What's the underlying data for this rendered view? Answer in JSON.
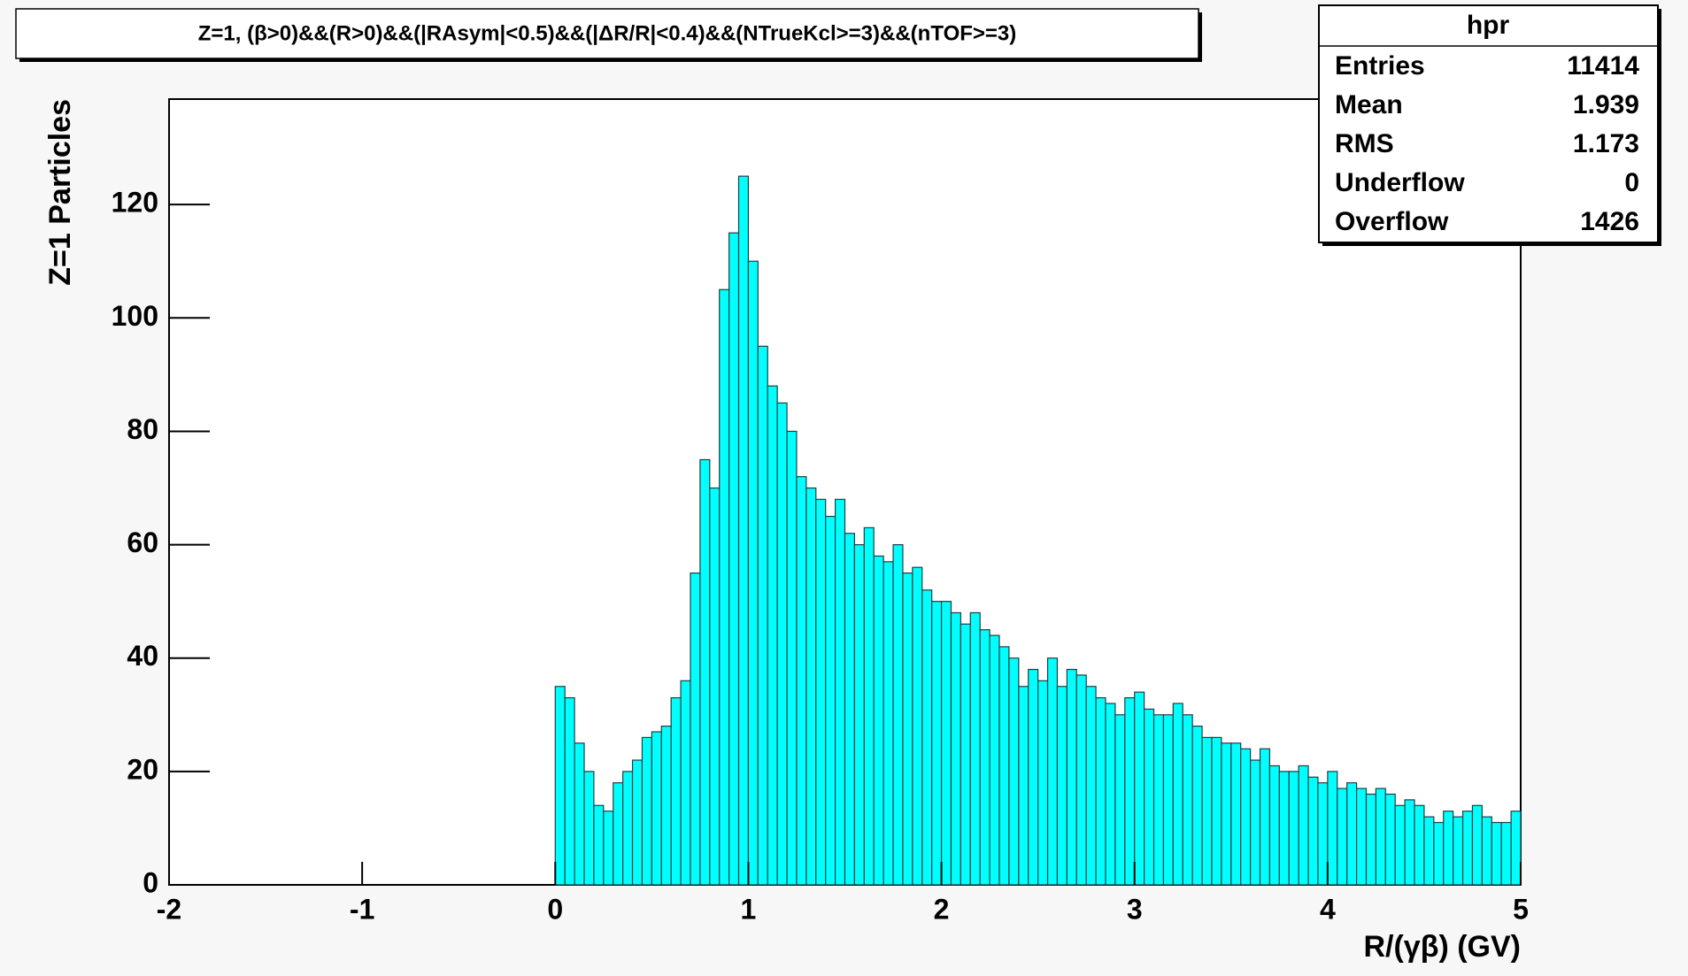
{
  "chart_data": {
    "type": "histogram",
    "title": "Z=1, (β>0)&&(R>0)&&(|RAsym|<0.5)&&(|ΔR/R|<0.4)&&(NTrueKcl>=3)&&(nTOF>=3)",
    "x_label": "R/(γβ) (GV)",
    "y_label": "Z=1 Particles",
    "color": "#00ffff",
    "edge_color": "#1f3f3f",
    "bins": [
      0,
      0.05,
      0.1,
      0.15,
      0.2,
      0.25,
      0.3,
      0.35,
      0.4,
      0.45,
      0.5,
      0.55,
      0.6,
      0.65,
      0.7,
      0.75,
      0.8,
      0.85,
      0.9,
      0.95,
      1,
      1.05,
      1.1,
      1.15,
      1.2,
      1.25,
      1.3,
      1.35,
      1.4,
      1.45,
      1.5,
      1.55,
      1.6,
      1.65,
      1.7,
      1.75,
      1.8,
      1.85,
      1.9,
      1.95,
      2,
      2.05,
      2.1,
      2.15,
      2.2,
      2.25,
      2.3,
      2.35,
      2.4,
      2.45,
      2.5,
      2.55,
      2.6,
      2.65,
      2.7,
      2.75,
      2.8,
      2.85,
      2.9,
      2.95,
      3,
      3.05,
      3.1,
      3.15,
      3.2,
      3.25,
      3.3,
      3.35,
      3.4,
      3.45,
      3.5,
      3.55,
      3.6,
      3.65,
      3.7,
      3.75,
      3.8,
      3.85,
      3.9,
      3.95,
      4,
      4.05,
      4.1,
      4.15,
      4.2,
      4.25,
      4.3,
      4.35,
      4.4,
      4.45,
      4.5,
      4.55,
      4.6,
      4.65,
      4.7,
      4.75,
      4.8,
      4.85,
      4.9,
      4.95,
      5
    ],
    "values": [
      35,
      33,
      25,
      20,
      14,
      13,
      18,
      20,
      22,
      26,
      27,
      28,
      33,
      36,
      55,
      75,
      70,
      105,
      115,
      125,
      110,
      95,
      88,
      85,
      80,
      72,
      70,
      68,
      65,
      68,
      62,
      60,
      63,
      58,
      57,
      60,
      55,
      56,
      52,
      50,
      50,
      48,
      46,
      48,
      45,
      44,
      42,
      40,
      35,
      38,
      36,
      40,
      35,
      38,
      37,
      35,
      33,
      32,
      30,
      33,
      34,
      31,
      30,
      30,
      32,
      30,
      28,
      26,
      26,
      25,
      25,
      24,
      22,
      24,
      21,
      20,
      20,
      21,
      19,
      18,
      20,
      17,
      18,
      17,
      16,
      17,
      16,
      14,
      15,
      14,
      12,
      11,
      13,
      12,
      13,
      14,
      12,
      11,
      11,
      13
    ],
    "xlim": [
      -2,
      5
    ],
    "xticks": [
      -2,
      -1,
      0,
      1,
      2,
      3,
      4,
      5
    ],
    "ylim": [
      0,
      138.6
    ],
    "yticks": [
      0,
      20,
      40,
      60,
      80,
      100,
      120
    ],
    "stats": {
      "title": "hpr",
      "rows": [
        {
          "label": "Entries",
          "value": 11414
        },
        {
          "label": "Mean",
          "value": 1.939
        },
        {
          "label": "RMS",
          "value": 1.173
        },
        {
          "label": "Underflow",
          "value": 0
        },
        {
          "label": "Overflow",
          "value": 1426
        }
      ]
    }
  }
}
